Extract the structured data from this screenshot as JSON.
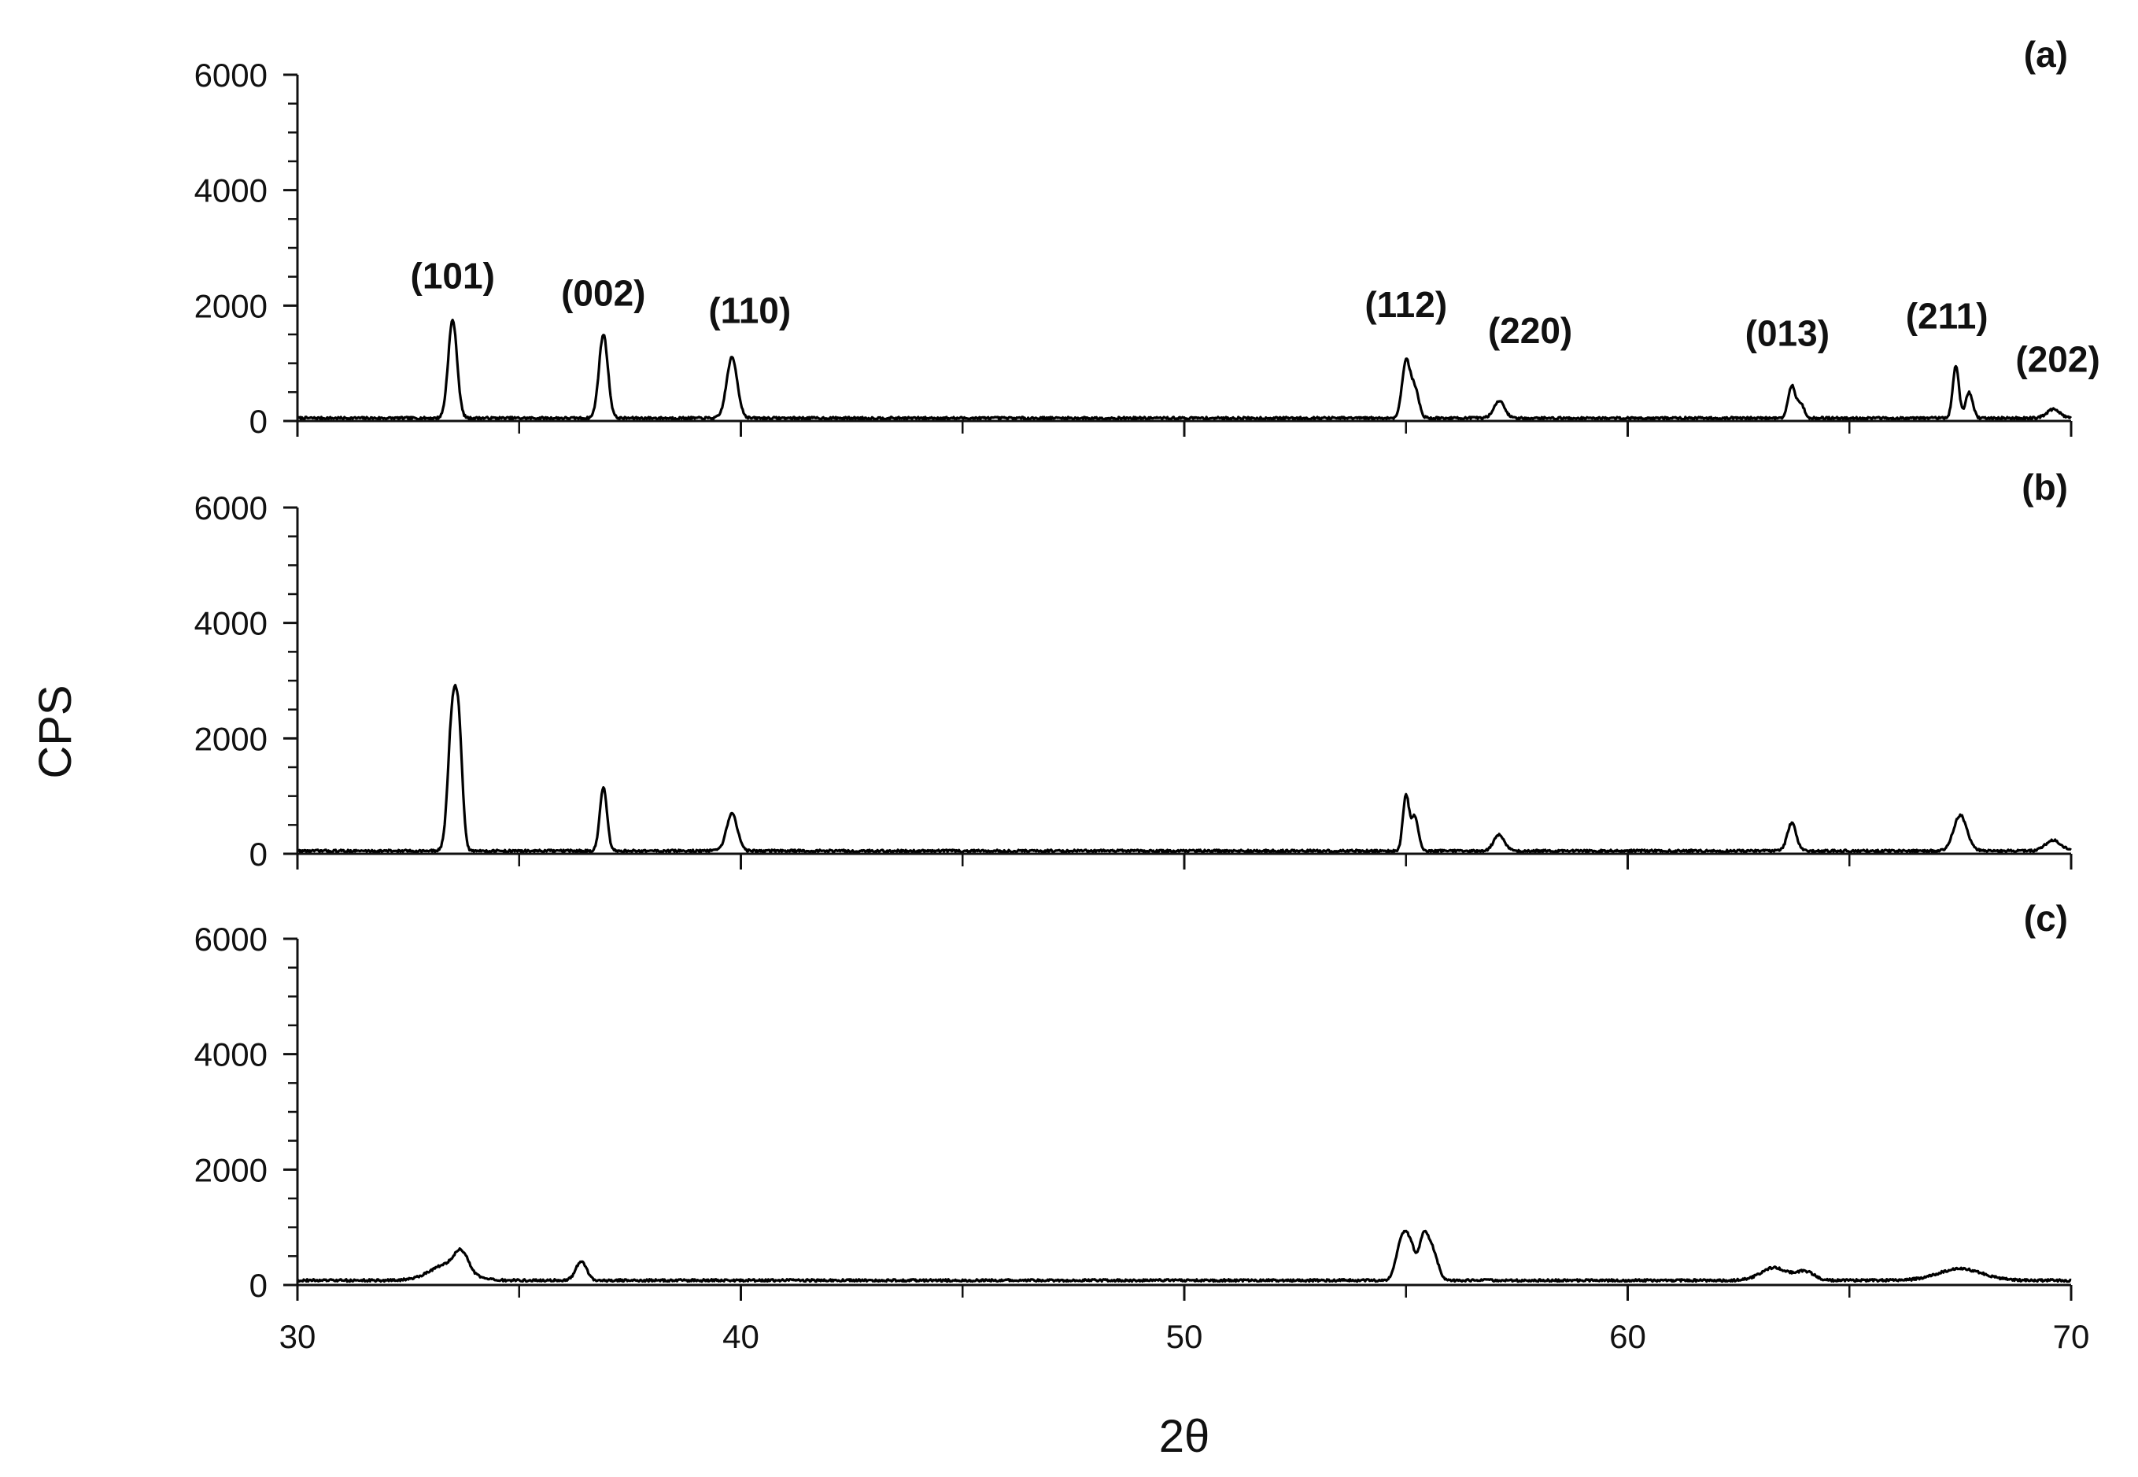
{
  "chart_data": {
    "type": "line",
    "layout": "3 stacked panels sharing the x axis",
    "xlabel": "2θ",
    "ylabel": "CPS",
    "xlim": [
      30,
      70
    ],
    "ylim": [
      0,
      6000
    ],
    "x_ticks": [
      "30",
      "40",
      "50",
      "60",
      "70"
    ],
    "y_ticks": [
      "0",
      "2000",
      "4000",
      "6000"
    ],
    "grid": false,
    "line_color": "#000000",
    "panels": [
      {
        "label": "(a)",
        "baseline": 50,
        "peaks": [
          {
            "x": 33.5,
            "y": 1700,
            "w": 0.1
          },
          {
            "x": 36.9,
            "y": 1450,
            "w": 0.1
          },
          {
            "x": 39.8,
            "y": 1050,
            "w": 0.12
          },
          {
            "x": 55.0,
            "y": 980,
            "w": 0.09
          },
          {
            "x": 55.2,
            "y": 500,
            "w": 0.09
          },
          {
            "x": 57.1,
            "y": 300,
            "w": 0.12
          },
          {
            "x": 63.7,
            "y": 550,
            "w": 0.08
          },
          {
            "x": 63.9,
            "y": 250,
            "w": 0.08
          },
          {
            "x": 67.4,
            "y": 900,
            "w": 0.07
          },
          {
            "x": 67.7,
            "y": 450,
            "w": 0.08
          },
          {
            "x": 69.6,
            "y": 150,
            "w": 0.15
          }
        ],
        "peak_labels": [
          {
            "text": "(101)",
            "x": 33.5,
            "y": 2300
          },
          {
            "text": "(002)",
            "x": 36.9,
            "y": 2000
          },
          {
            "text": "(110)",
            "x": 40.2,
            "y": 1700
          },
          {
            "text": "(112)",
            "x": 55.0,
            "y": 1800
          },
          {
            "text": "(220)",
            "x": 57.8,
            "y": 1350
          },
          {
            "text": "(013)",
            "x": 63.6,
            "y": 1300
          },
          {
            "text": "(211)",
            "x": 67.2,
            "y": 1600
          },
          {
            "text": "(202)",
            "x": 69.7,
            "y": 850
          }
        ]
      },
      {
        "label": "(b)",
        "baseline": 50,
        "peaks": [
          {
            "x": 33.5,
            "y": 2400,
            "w": 0.1
          },
          {
            "x": 33.65,
            "y": 1600,
            "w": 0.08
          },
          {
            "x": 36.9,
            "y": 1100,
            "w": 0.08
          },
          {
            "x": 39.8,
            "y": 650,
            "w": 0.12
          },
          {
            "x": 55.0,
            "y": 950,
            "w": 0.07
          },
          {
            "x": 55.2,
            "y": 600,
            "w": 0.08
          },
          {
            "x": 57.1,
            "y": 280,
            "w": 0.12
          },
          {
            "x": 63.7,
            "y": 480,
            "w": 0.1
          },
          {
            "x": 67.5,
            "y": 620,
            "w": 0.15
          },
          {
            "x": 69.6,
            "y": 180,
            "w": 0.18
          }
        ],
        "peak_labels": []
      },
      {
        "label": "(c)",
        "baseline": 80,
        "peaks": [
          {
            "x": 33.4,
            "y": 280,
            "w": 0.4
          },
          {
            "x": 33.7,
            "y": 320,
            "w": 0.15
          },
          {
            "x": 36.4,
            "y": 330,
            "w": 0.12
          },
          {
            "x": 54.9,
            "y": 650,
            "w": 0.12
          },
          {
            "x": 55.1,
            "y": 550,
            "w": 0.12
          },
          {
            "x": 55.4,
            "y": 700,
            "w": 0.1
          },
          {
            "x": 55.6,
            "y": 500,
            "w": 0.12
          },
          {
            "x": 63.3,
            "y": 220,
            "w": 0.3
          },
          {
            "x": 64.0,
            "y": 150,
            "w": 0.2
          },
          {
            "x": 67.5,
            "y": 200,
            "w": 0.5
          }
        ],
        "peak_labels": []
      }
    ]
  }
}
